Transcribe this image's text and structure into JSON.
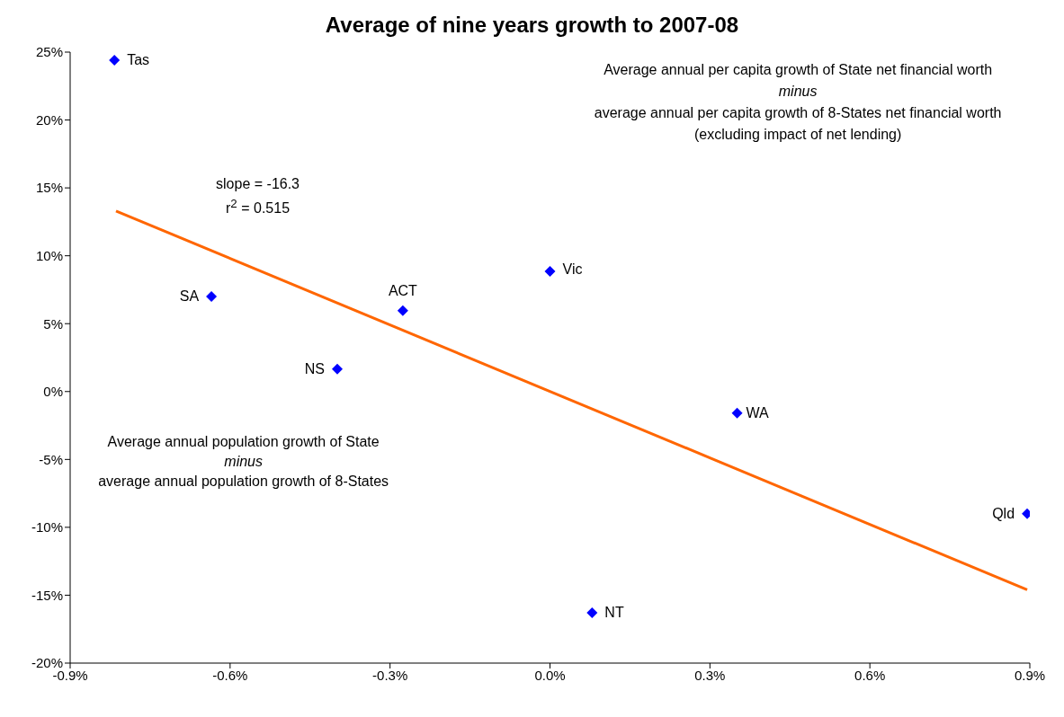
{
  "chart_data": {
    "type": "scatter",
    "title": "Average of nine years growth to 2007-08",
    "xlabel": "Average annual population growth of State\nminus\naverage annual population growth of 8-States",
    "ylabel": "Average annual per capita growth of State net financial worth\nminus\naverage annual per capita growth of 8-States net financial worth\n(excluding impact of net lending)",
    "x": [
      -0.817,
      -0.635,
      -0.276,
      -0.399,
      0.0,
      0.351,
      0.895,
      0.079
    ],
    "series": [
      {
        "type": "scatter",
        "color": "#0000ff",
        "marker": "diamond",
        "values": [
          24.4,
          7.0,
          5.95,
          1.65,
          8.86,
          -1.59,
          -9.0,
          -16.3
        ]
      },
      {
        "type": "line",
        "color": "#ff6600",
        "x": [
          -0.814,
          0.895
        ],
        "values": [
          13.3,
          -14.6
        ]
      }
    ],
    "xlim": [
      -0.9,
      0.9
    ],
    "xticks": [
      {
        "value": -0.9,
        "label": "-0.9%"
      },
      {
        "value": -0.6,
        "label": "-0.6%"
      },
      {
        "value": -0.3,
        "label": "-0.3%"
      },
      {
        "value": 0,
        "label": "0.0%"
      },
      {
        "value": 0.3,
        "label": "0.3%"
      },
      {
        "value": 0.6,
        "label": "0.6%"
      },
      {
        "value": 0.9,
        "label": "0.9%"
      }
    ],
    "ylim": [
      -20,
      25
    ],
    "yticks": [
      {
        "value": -20,
        "label": "-20%"
      },
      {
        "value": -15,
        "label": "-15%"
      },
      {
        "value": -10,
        "label": "-10%"
      },
      {
        "value": -5,
        "label": "-5%"
      },
      {
        "value": 0,
        "label": "0%"
      },
      {
        "value": 5,
        "label": "5%"
      },
      {
        "value": 10,
        "label": "10%"
      },
      {
        "value": 15,
        "label": "15%"
      },
      {
        "value": 20,
        "label": "20%"
      },
      {
        "value": 25,
        "label": "25%"
      }
    ],
    "annotations": [
      {
        "text": "Tas",
        "x": -0.817,
        "y": 24.4
      },
      {
        "text": "SA",
        "x": -0.635,
        "y": 7.0
      },
      {
        "text": "ACT",
        "x": -0.276,
        "y": 5.95
      },
      {
        "text": "NS",
        "x": -0.399,
        "y": 1.65
      },
      {
        "text": "Vic",
        "x": 0.0,
        "y": 8.86
      },
      {
        "text": "WA",
        "x": 0.351,
        "y": -1.59
      },
      {
        "text": "Qld",
        "x": 0.895,
        "y": -9.0
      },
      {
        "text": "NT",
        "x": 0.079,
        "y": -16.3
      },
      "slope = -16.3\nr$^{2}$ = 0.515"
    ],
    "grid": false,
    "legend": false
  }
}
